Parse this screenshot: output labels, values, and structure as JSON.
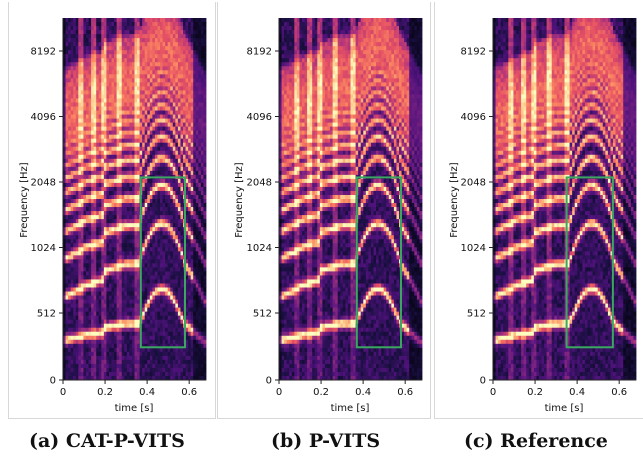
{
  "figure": {
    "panels": [
      {
        "caption": "(a) CAT-P-VITS",
        "seed": 11
      },
      {
        "caption": "(b) P-VITS",
        "seed": 23
      },
      {
        "caption": "(c) Reference",
        "seed": 37
      }
    ]
  },
  "chart_data": [
    {
      "type": "heatmap",
      "xlabel": "time [s]",
      "ylabel": "Frequency [Hz]",
      "x_ticks": [
        0,
        0.2,
        0.4,
        0.6
      ],
      "x_tick_labels": [
        "0",
        "0.2",
        "0.4",
        "0.6"
      ],
      "y_ticks": [
        0,
        512,
        1024,
        2048,
        4096,
        8192
      ],
      "y_tick_labels": [
        "0",
        "512",
        "1024",
        "2048",
        "4096",
        "8192"
      ],
      "xlim": [
        0,
        0.68
      ],
      "highlight_box": {
        "color": "#3aa860",
        "t_start": 0.37,
        "t_end": 0.58,
        "f_low": 250,
        "f_high": 2150
      }
    },
    {
      "type": "heatmap",
      "xlabel": "time [s]",
      "ylabel": "Frequency [Hz]",
      "x_ticks": [
        0,
        0.2,
        0.4,
        0.6
      ],
      "x_tick_labels": [
        "0",
        "0.2",
        "0.4",
        "0.6"
      ],
      "y_ticks": [
        0,
        512,
        1024,
        2048,
        4096,
        8192
      ],
      "y_tick_labels": [
        "0",
        "512",
        "1024",
        "2048",
        "4096",
        "8192"
      ],
      "xlim": [
        0,
        0.68
      ],
      "highlight_box": {
        "color": "#3aa860",
        "t_start": 0.37,
        "t_end": 0.58,
        "f_low": 250,
        "f_high": 2150
      }
    },
    {
      "type": "heatmap",
      "xlabel": "time [s]",
      "ylabel": "Frequency [Hz]",
      "x_ticks": [
        0,
        0.2,
        0.4,
        0.6
      ],
      "x_tick_labels": [
        "0",
        "0.2",
        "0.4",
        "0.6"
      ],
      "y_ticks": [
        0,
        512,
        1024,
        2048,
        4096,
        8192
      ],
      "y_tick_labels": [
        "0",
        "512",
        "1024",
        "2048",
        "4096",
        "8192"
      ],
      "xlim": [
        0,
        0.68
      ],
      "highlight_box": {
        "color": "#3aa860",
        "t_start": 0.35,
        "t_end": 0.57,
        "f_low": 250,
        "f_high": 2150
      }
    }
  ],
  "colors": {
    "colormap": "magma",
    "box": "#3aa860",
    "frame": "#d8d8d8"
  },
  "legend": {
    "shown": false
  }
}
